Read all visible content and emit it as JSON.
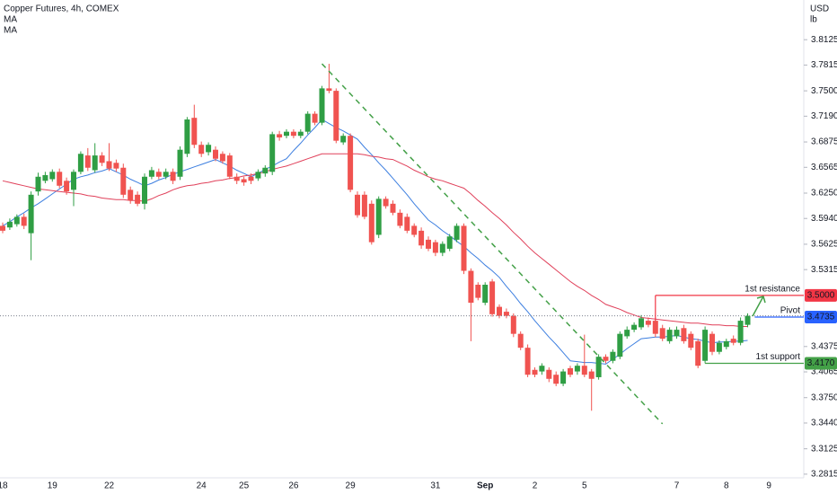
{
  "chart_data": {
    "type": "candlestick",
    "title": "Copper Futures, 4h, COMEX",
    "currency": "USD",
    "unit": "lb",
    "categories": [
      "18",
      null,
      null,
      null,
      null,
      null,
      null,
      "19",
      null,
      null,
      null,
      null,
      null,
      null,
      null,
      "22",
      null,
      null,
      null,
      null,
      null,
      null,
      null,
      null,
      null,
      null,
      null,
      null,
      "24",
      null,
      null,
      null,
      null,
      null,
      "25",
      null,
      null,
      null,
      null,
      null,
      null,
      "26",
      null,
      null,
      null,
      null,
      null,
      null,
      null,
      "29",
      null,
      null,
      null,
      null,
      null,
      null,
      null,
      null,
      null,
      null,
      null,
      "31",
      null,
      null,
      null,
      null,
      null,
      null,
      "Sep",
      null,
      null,
      null,
      null,
      null,
      null,
      "2",
      null,
      null,
      null,
      null,
      null,
      null,
      "5",
      null,
      null,
      null,
      null,
      null,
      null,
      null,
      null,
      null,
      null,
      null,
      null,
      "7",
      null,
      null,
      null,
      null,
      null,
      null,
      "8",
      null,
      null,
      null,
      null,
      null,
      "9"
    ],
    "open": [
      3.585,
      3.583,
      3.587,
      3.596,
      3.576,
      3.627,
      3.64,
      3.642,
      3.651,
      3.64,
      3.629,
      3.651,
      3.671,
      3.653,
      3.671,
      3.664,
      3.662,
      3.656,
      3.629,
      3.623,
      3.612,
      3.645,
      3.651,
      3.645,
      3.651,
      3.645,
      3.673,
      3.717,
      3.684,
      3.675,
      3.678,
      3.673,
      3.671,
      3.645,
      3.642,
      3.645,
      3.643,
      3.649,
      3.651,
      3.697,
      3.695,
      3.7,
      3.695,
      3.7,
      3.722,
      3.711,
      3.753,
      3.75,
      3.687,
      3.695,
      3.623,
      3.623,
      3.612,
      3.574,
      3.618,
      3.612,
      3.601,
      3.596,
      3.585,
      3.579,
      3.568,
      3.565,
      3.552,
      3.557,
      3.568,
      3.585,
      3.53,
      3.513,
      3.491,
      3.517,
      3.486,
      3.48,
      3.475,
      3.453,
      3.436,
      3.409,
      3.407,
      3.409,
      3.403,
      3.392,
      3.411,
      3.407,
      3.414,
      3.407,
      3.4,
      3.425,
      3.42,
      3.425,
      3.45,
      3.458,
      3.461,
      3.469,
      3.469,
      3.46,
      3.444,
      3.45,
      3.46,
      3.453,
      3.444,
      3.42,
      3.453,
      3.431,
      3.437,
      3.447,
      3.442,
      3.464,
      null,
      null,
      null
    ],
    "high": [
      3.589,
      3.594,
      3.599,
      3.6,
      3.627,
      3.65,
      3.651,
      3.654,
      3.655,
      3.644,
      3.654,
      3.676,
      3.68,
      3.686,
      3.675,
      3.686,
      3.666,
      3.661,
      3.633,
      3.627,
      3.649,
      3.657,
      3.655,
      3.655,
      3.655,
      3.682,
      3.718,
      3.733,
      3.688,
      3.687,
      3.682,
      3.676,
      3.674,
      3.649,
      3.645,
      3.649,
      3.654,
      3.659,
      3.7,
      3.701,
      3.703,
      3.703,
      3.703,
      3.725,
      3.725,
      3.756,
      3.783,
      3.753,
      3.698,
      3.698,
      3.627,
      3.627,
      3.616,
      3.621,
      3.621,
      3.616,
      3.605,
      3.6,
      3.588,
      3.583,
      3.572,
      3.568,
      3.566,
      3.575,
      3.588,
      3.588,
      3.533,
      3.516,
      3.516,
      3.52,
      3.489,
      3.484,
      3.478,
      3.456,
      3.44,
      3.412,
      3.417,
      3.412,
      3.407,
      3.41,
      3.414,
      3.417,
      3.452,
      3.41,
      3.428,
      3.428,
      3.434,
      3.456,
      3.462,
      3.467,
      3.476,
      3.473,
      3.473,
      3.464,
      3.461,
      3.462,
      3.464,
      3.456,
      3.447,
      3.462,
      3.456,
      3.445,
      3.447,
      3.451,
      3.473,
      3.478,
      null,
      null,
      null
    ],
    "low": [
      3.576,
      3.58,
      3.584,
      3.581,
      3.543,
      3.622,
      3.637,
      3.639,
      3.631,
      3.623,
      3.609,
      3.648,
      3.652,
      3.65,
      3.658,
      3.652,
      3.651,
      3.619,
      3.612,
      3.609,
      3.605,
      3.642,
      3.642,
      3.642,
      3.636,
      3.641,
      3.669,
      3.68,
      3.669,
      3.671,
      3.664,
      3.661,
      3.642,
      3.636,
      3.634,
      3.636,
      3.64,
      3.645,
      3.647,
      3.689,
      3.692,
      3.692,
      3.692,
      3.697,
      3.708,
      3.708,
      3.747,
      3.686,
      3.684,
      3.626,
      3.595,
      3.593,
      3.562,
      3.57,
      3.606,
      3.598,
      3.582,
      3.576,
      3.571,
      3.557,
      3.554,
      3.548,
      3.548,
      3.554,
      3.565,
      3.526,
      3.444,
      3.494,
      3.488,
      3.474,
      3.472,
      3.472,
      3.449,
      3.433,
      3.4,
      3.4,
      3.403,
      3.394,
      3.389,
      3.389,
      3.4,
      3.403,
      3.4,
      3.359,
      3.397,
      3.417,
      3.417,
      3.422,
      3.447,
      3.455,
      3.458,
      3.461,
      3.449,
      3.444,
      3.441,
      3.447,
      3.441,
      3.433,
      3.411,
      3.417,
      3.427,
      3.428,
      3.434,
      3.439,
      3.439,
      3.461,
      null,
      null,
      null
    ],
    "close": [
      3.579,
      3.59,
      3.596,
      3.585,
      3.623,
      3.645,
      3.647,
      3.651,
      3.634,
      3.627,
      3.651,
      3.673,
      3.656,
      3.671,
      3.662,
      3.655,
      3.655,
      3.623,
      3.616,
      3.612,
      3.645,
      3.653,
      3.645,
      3.651,
      3.64,
      3.678,
      3.715,
      3.684,
      3.673,
      3.684,
      3.667,
      3.664,
      3.645,
      3.64,
      3.638,
      3.64,
      3.651,
      3.656,
      3.697,
      3.693,
      3.7,
      3.695,
      3.7,
      3.722,
      3.711,
      3.753,
      3.75,
      3.689,
      3.695,
      3.629,
      3.598,
      3.596,
      3.565,
      3.618,
      3.609,
      3.601,
      3.585,
      3.579,
      3.574,
      3.561,
      3.557,
      3.552,
      3.563,
      3.572,
      3.585,
      3.53,
      3.491,
      3.497,
      3.513,
      3.477,
      3.475,
      3.475,
      3.453,
      3.436,
      3.403,
      3.403,
      3.414,
      3.398,
      3.392,
      3.407,
      3.403,
      3.414,
      3.403,
      3.398,
      3.425,
      3.42,
      3.431,
      3.453,
      3.458,
      3.464,
      3.472,
      3.464,
      3.453,
      3.447,
      3.458,
      3.458,
      3.444,
      3.436,
      3.414,
      3.458,
      3.431,
      3.442,
      3.444,
      3.442,
      3.469,
      3.475,
      null,
      null,
      null
    ],
    "up_color": "#2f9e44",
    "down_color": "#f05350",
    "series": [
      {
        "name": "MA",
        "color": "#3d7fe0",
        "values": [
          3.585,
          3.59,
          3.596,
          3.601,
          3.607,
          3.612,
          3.618,
          3.624,
          3.63,
          3.636,
          3.642,
          3.645,
          3.647,
          3.65,
          3.652,
          3.655,
          3.651,
          3.647,
          3.642,
          3.638,
          3.634,
          3.637,
          3.641,
          3.644,
          3.648,
          3.651,
          3.654,
          3.657,
          3.66,
          3.663,
          3.666,
          3.662,
          3.658,
          3.653,
          3.649,
          3.645,
          3.649,
          3.654,
          3.658,
          3.663,
          3.667,
          3.677,
          3.686,
          3.696,
          3.705,
          3.715,
          3.71,
          3.705,
          3.701,
          3.696,
          3.691,
          3.681,
          3.672,
          3.662,
          3.653,
          3.643,
          3.633,
          3.623,
          3.612,
          3.602,
          3.592,
          3.586,
          3.579,
          3.573,
          3.566,
          3.56,
          3.552,
          3.545,
          3.537,
          3.53,
          3.522,
          3.511,
          3.501,
          3.49,
          3.48,
          3.469,
          3.459,
          3.449,
          3.44,
          3.43,
          3.42,
          3.419,
          3.418,
          3.418,
          3.417,
          3.416,
          3.422,
          3.428,
          3.435,
          3.441,
          3.447,
          3.448,
          3.449,
          3.449,
          3.45,
          3.451,
          3.449,
          3.447,
          3.446,
          3.444,
          3.442,
          3.443,
          3.443,
          3.444,
          3.444,
          3.445,
          null,
          null,
          null
        ]
      },
      {
        "name": "MA",
        "color": "#e0405a",
        "values": [
          3.64,
          3.638,
          3.636,
          3.634,
          3.632,
          3.63,
          3.629,
          3.628,
          3.627,
          3.626,
          3.625,
          3.624,
          3.622,
          3.621,
          3.619,
          3.618,
          3.617,
          3.617,
          3.616,
          3.616,
          3.615,
          3.618,
          3.622,
          3.625,
          3.629,
          3.632,
          3.634,
          3.635,
          3.637,
          3.638,
          3.64,
          3.641,
          3.643,
          3.644,
          3.646,
          3.647,
          3.649,
          3.651,
          3.654,
          3.656,
          3.658,
          3.661,
          3.664,
          3.667,
          3.67,
          3.673,
          3.673,
          3.673,
          3.673,
          3.673,
          3.673,
          3.672,
          3.67,
          3.669,
          3.667,
          3.666,
          3.662,
          3.658,
          3.653,
          3.649,
          3.645,
          3.642,
          3.64,
          3.637,
          3.634,
          3.631,
          3.624,
          3.616,
          3.609,
          3.601,
          3.594,
          3.586,
          3.577,
          3.569,
          3.56,
          3.552,
          3.545,
          3.538,
          3.531,
          3.524,
          3.517,
          3.511,
          3.506,
          3.5,
          3.495,
          3.489,
          3.486,
          3.483,
          3.479,
          3.476,
          3.473,
          3.472,
          3.471,
          3.47,
          3.469,
          3.468,
          3.467,
          3.466,
          3.466,
          3.465,
          3.464,
          3.464,
          3.463,
          3.463,
          3.462,
          3.462,
          null,
          null,
          null
        ]
      }
    ],
    "ylim": [
      3.277,
      3.861
    ],
    "yticks": [
      3.8125,
      3.7815,
      {
        "value": 3.75,
        "label": "3.7500"
      },
      {
        "value": 3.719,
        "label": "3.7190"
      },
      3.6875,
      3.6565,
      {
        "value": 3.625,
        "label": "3.6250"
      },
      {
        "value": 3.594,
        "label": "3.5940"
      },
      3.5625,
      3.5315,
      3.4375,
      3.4065,
      {
        "value": 3.375,
        "label": "3.3750"
      },
      {
        "value": 3.344,
        "label": "3.3440"
      },
      3.3125,
      3.2815
    ],
    "trendline": {
      "x": [
        45,
        93
      ],
      "values": [
        3.783,
        3.343
      ],
      "color": "#43a047"
    },
    "levels": [
      {
        "name": "1st resistance",
        "value": 3.5,
        "label": "3.5000",
        "x": 92,
        "color": "#f23645"
      },
      {
        "name": "Pivot",
        "value": 3.4735,
        "label": "3.4735",
        "x": 106,
        "color": "#2962ff"
      },
      {
        "name": "1st support",
        "value": 3.417,
        "label": "3.4170",
        "x": 99,
        "color": "#43a047"
      }
    ],
    "grid": false
  }
}
